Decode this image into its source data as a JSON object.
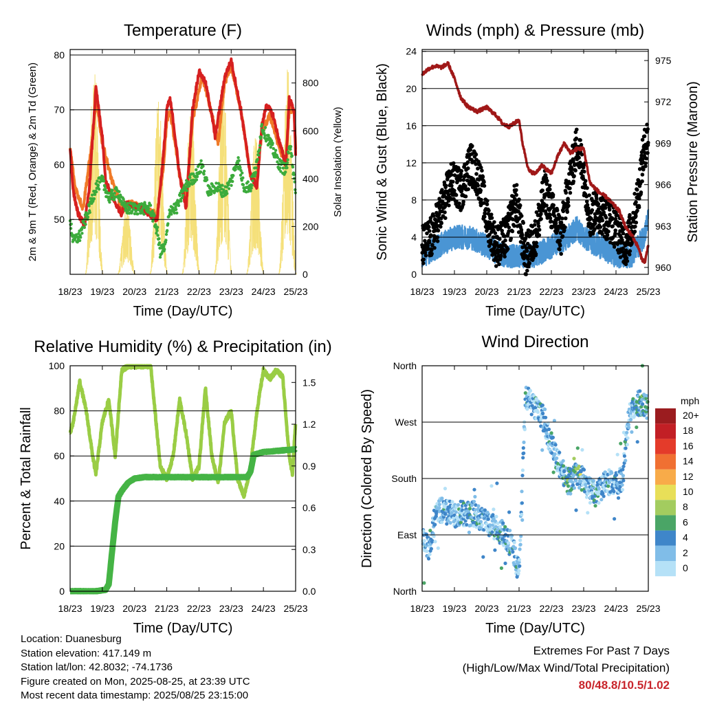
{
  "x_ticks": [
    "18/23",
    "19/23",
    "20/23",
    "21/23",
    "22/23",
    "23/23",
    "24/23",
    "25/23"
  ],
  "colors": {
    "t2": "#d62020",
    "t9": "#f07a28",
    "td": "#3cab3c",
    "sol": "#f5e07a",
    "wind": "#4a95d4",
    "gust": "#000000",
    "pres": "#a01818",
    "rh": "#9acd45",
    "precip": "#45b445"
  },
  "chart_data": [
    {
      "type": "line",
      "title": "Temperature (F)",
      "xlabel": "Time (Day/UTC)",
      "ylabel": "2m & 9m T (Red, Orange) & 2m Td (Green)",
      "y2label": "Solar Insolation (Yellow)",
      "x_ticks": [
        "18/23",
        "19/23",
        "20/23",
        "21/23",
        "22/23",
        "23/23",
        "24/23",
        "25/23"
      ],
      "xlim": [
        0,
        7
      ],
      "ylim": [
        40,
        81
      ],
      "yticks": [
        50,
        60,
        70,
        80
      ],
      "y2lim": [
        0,
        940
      ],
      "y2ticks": [
        0,
        200,
        400,
        600,
        800
      ],
      "grid": "horizontal",
      "series": [
        {
          "name": "2m T",
          "color": "red",
          "x": [
            0,
            0.1,
            0.25,
            0.45,
            0.6,
            0.8,
            1.0,
            1.1,
            1.25,
            1.4,
            1.6,
            1.7,
            1.8,
            2.2,
            2.7,
            2.9,
            3.0,
            3.1,
            3.2,
            3.4,
            3.6,
            3.8,
            4.0,
            4.2,
            4.4,
            4.5,
            4.8,
            5.0,
            5.3,
            5.6,
            5.8,
            5.95,
            6.1,
            6.3,
            6.5,
            6.7,
            6.8,
            6.95,
            7.0
          ],
          "y": [
            63,
            55,
            51,
            49,
            56,
            74,
            65,
            57,
            55,
            53,
            51,
            53,
            53,
            52,
            50,
            62,
            70,
            72,
            68,
            58,
            52,
            70,
            77,
            75,
            69,
            65,
            76,
            79,
            70,
            58,
            56,
            67,
            71,
            69,
            64,
            60,
            72,
            70,
            62
          ]
        },
        {
          "name": "9m T",
          "color": "orange",
          "x": [
            0,
            0.15,
            0.4,
            0.7,
            0.8,
            1.0,
            1.3,
            1.6,
            1.9,
            2.2,
            2.7,
            2.9,
            3.0,
            3.1,
            3.4,
            3.6,
            3.8,
            4.1,
            4.2,
            4.6,
            4.8,
            5.0,
            5.3,
            5.6,
            5.8,
            5.95,
            6.2,
            6.5,
            6.7,
            6.8,
            6.95,
            7.0
          ],
          "y": [
            63,
            56,
            52,
            65,
            72,
            64,
            57,
            52,
            53,
            52,
            51,
            60,
            68,
            70,
            58,
            53,
            68,
            76,
            74,
            64,
            75,
            78,
            70,
            58,
            57,
            66,
            69,
            63,
            60,
            70,
            70,
            63
          ]
        },
        {
          "name": "2m Td",
          "color": "green",
          "x": [
            0,
            0.1,
            0.3,
            0.6,
            0.8,
            1.0,
            1.2,
            1.5,
            1.7,
            2.1,
            2.5,
            2.7,
            2.8,
            2.95,
            3.1,
            3.3,
            3.5,
            3.7,
            3.9,
            4.1,
            4.3,
            4.5,
            4.8,
            5.0,
            5.2,
            5.4,
            5.6,
            5.8,
            5.95,
            6.2,
            6.5,
            6.7,
            6.85,
            7.0
          ],
          "y": [
            50,
            46,
            47,
            52,
            56,
            57,
            54,
            55,
            52,
            52,
            52,
            48,
            44,
            45,
            52,
            52,
            55,
            57,
            58,
            60,
            55,
            56,
            55,
            57,
            61,
            56,
            56,
            60,
            67,
            64,
            60,
            59,
            64,
            54
          ]
        },
        {
          "name": "Solar Insolation",
          "color": "yellow",
          "axis": "y2",
          "peak_days": [
            0.75,
            1.75,
            2.75,
            3.75,
            4.75,
            5.75,
            6.75
          ],
          "peaks": [
            930,
            300,
            760,
            730,
            820,
            600,
            930
          ]
        }
      ]
    },
    {
      "type": "line",
      "title": "Winds (mph) & Pressure (mb)",
      "xlabel": "Time (Day/UTC)",
      "ylabel": "Sonic Wind & Gust (Blue, Black)",
      "y2label": "Station Pressure (Maroon)",
      "x_ticks": [
        "18/23",
        "19/23",
        "20/23",
        "21/23",
        "22/23",
        "23/23",
        "24/23",
        "25/23"
      ],
      "xlim": [
        0,
        7
      ],
      "ylim": [
        0,
        24.2
      ],
      "yticks": [
        0,
        4,
        8,
        12,
        16,
        20,
        24
      ],
      "y2lim": [
        959.5,
        975.8
      ],
      "y2ticks": [
        960,
        963,
        966,
        969,
        972,
        975
      ],
      "grid": "horizontal",
      "series": [
        {
          "name": "Gust",
          "color": "black",
          "x": [
            0,
            0.3,
            0.6,
            0.9,
            1.2,
            1.5,
            1.8,
            2.0,
            2.3,
            2.6,
            2.9,
            3.2,
            3.5,
            3.8,
            4.0,
            4.3,
            4.5,
            4.8,
            5.0,
            5.2,
            5.4,
            5.7,
            6.0,
            6.3,
            6.5,
            6.7,
            6.85,
            7.0
          ],
          "y": [
            3,
            4,
            7,
            10,
            9,
            12,
            10,
            6,
            3,
            4,
            8,
            2,
            4,
            9,
            7,
            4,
            9,
            14,
            11,
            6,
            7,
            6,
            5,
            3,
            5,
            9,
            13,
            15
          ]
        },
        {
          "name": "Wind",
          "color": "blue",
          "x": [
            0,
            0.5,
            1.0,
            1.5,
            2.0,
            2.5,
            3.0,
            3.5,
            4.0,
            4.5,
            4.8,
            5.0,
            5.5,
            6.0,
            6.5,
            6.85,
            7.0
          ],
          "y": [
            2,
            3,
            4,
            4,
            3,
            2,
            2,
            2,
            3,
            4,
            5,
            4,
            3,
            2,
            2,
            4,
            6
          ]
        },
        {
          "name": "Pressure",
          "color": "maroon",
          "axis": "y2",
          "x": [
            0,
            0.2,
            0.4,
            0.6,
            0.8,
            1.0,
            1.2,
            1.4,
            1.7,
            2.0,
            2.3,
            2.5,
            2.7,
            3.0,
            3.1,
            3.3,
            3.5,
            3.7,
            4.0,
            4.2,
            4.4,
            4.6,
            4.8,
            5.0,
            5.2,
            5.5,
            5.7,
            5.9,
            6.1,
            6.3,
            6.5,
            6.7,
            6.8,
            6.9,
            7.0
          ],
          "y": [
            974,
            974.4,
            974.6,
            974.5,
            974.8,
            973.7,
            972.3,
            971.7,
            971.3,
            971.6,
            971,
            970.4,
            970.2,
            970.7,
            969.1,
            967,
            966.8,
            967.4,
            966.8,
            968.1,
            969,
            968.3,
            968.6,
            968.6,
            966.1,
            965.4,
            965.1,
            964.6,
            964.1,
            962.9,
            962.3,
            961.4,
            960.6,
            960.4,
            961.7
          ]
        }
      ]
    },
    {
      "type": "line",
      "title": "Relative Humidity (%) & Precipitation (in)",
      "xlabel": "Time (Day/UTC)",
      "ylabel": "Percent & Total Rainfall",
      "x_ticks": [
        "18/23",
        "19/23",
        "20/23",
        "21/23",
        "22/23",
        "23/23",
        "24/23",
        "25/23"
      ],
      "xlim": [
        0,
        7
      ],
      "ylim": [
        0,
        100
      ],
      "yticks": [
        0,
        20,
        40,
        60,
        80,
        100
      ],
      "y2lim": [
        0,
        1.62
      ],
      "y2ticks": [
        0.0,
        0.3,
        0.6,
        0.9,
        1.2,
        1.5
      ],
      "y2ticklabels": [
        "0.0",
        "0.3",
        "0.6",
        "0.9",
        "1.2",
        "1.5"
      ],
      "grid": "horizontal",
      "series": [
        {
          "name": "Relative Humidity",
          "color": "light green",
          "x": [
            0,
            0.1,
            0.3,
            0.5,
            0.7,
            0.8,
            1.0,
            1.2,
            1.4,
            1.6,
            1.8,
            2.0,
            2.5,
            2.7,
            2.8,
            3.0,
            3.2,
            3.4,
            3.6,
            3.8,
            4.0,
            4.2,
            4.4,
            4.6,
            4.8,
            5.0,
            5.2,
            5.4,
            5.6,
            5.8,
            6.0,
            6.2,
            6.4,
            6.6,
            6.8,
            6.9,
            7.0
          ],
          "y": [
            70,
            75,
            93,
            80,
            60,
            52,
            75,
            85,
            60,
            98,
            100,
            100,
            100,
            70,
            55,
            50,
            60,
            85,
            70,
            50,
            55,
            90,
            60,
            48,
            75,
            80,
            50,
            42,
            55,
            80,
            98,
            94,
            98,
            95,
            60,
            52,
            75
          ]
        },
        {
          "name": "Total Rainfall",
          "color": "green",
          "axis": "y2",
          "x": [
            0,
            0.8,
            1.1,
            1.2,
            1.3,
            1.4,
            1.5,
            1.6,
            1.8,
            2.0,
            2.3,
            3.0,
            4.0,
            5.0,
            5.5,
            5.6,
            5.7,
            6.0,
            6.5,
            7.0
          ],
          "y": [
            0,
            0,
            0.01,
            0.05,
            0.28,
            0.5,
            0.68,
            0.72,
            0.78,
            0.81,
            0.82,
            0.82,
            0.82,
            0.82,
            0.82,
            0.86,
            0.98,
            1.0,
            1.01,
            1.02
          ]
        }
      ]
    },
    {
      "type": "scatter",
      "title": "Wind Direction",
      "xlabel": "Time (Day/UTC)",
      "ylabel": "Direction (Colored By Speed)",
      "x_ticks": [
        "18/23",
        "19/23",
        "20/23",
        "21/23",
        "22/23",
        "23/23",
        "24/23",
        "25/23"
      ],
      "xlim": [
        0,
        7
      ],
      "ylim": [
        0,
        360
      ],
      "ytick_values": [
        0,
        90,
        180,
        270,
        360
      ],
      "yticks": [
        "North",
        "East",
        "South",
        "West",
        "North"
      ],
      "grid": "horizontal",
      "legend_title": "mph",
      "legend_placement": "right",
      "legend": [
        {
          "label": "0",
          "color": "#b5e1f7"
        },
        {
          "label": "2",
          "color": "#80bde8"
        },
        {
          "label": "4",
          "color": "#3f86c9"
        },
        {
          "label": "6",
          "color": "#4aa566"
        },
        {
          "label": "8",
          "color": "#a3cc5f"
        },
        {
          "label": "10",
          "color": "#e8df58"
        },
        {
          "label": "12",
          "color": "#f8ab49"
        },
        {
          "label": "14",
          "color": "#f07032"
        },
        {
          "label": "16",
          "color": "#e43b2a"
        },
        {
          "label": "18",
          "color": "#c21f25"
        },
        {
          "label": "20+",
          "color": "#9b1c1f"
        }
      ],
      "trend": {
        "x": [
          0,
          0.2,
          0.4,
          0.6,
          0.8,
          1.0,
          1.2,
          1.4,
          1.6,
          1.8,
          2.0,
          2.2,
          2.4,
          2.6,
          2.8,
          2.9,
          3.0,
          3.2,
          3.4,
          3.6,
          3.8,
          3.95,
          4.1,
          4.3,
          4.5,
          4.7,
          4.9,
          5.0,
          5.2,
          5.4,
          5.6,
          5.8,
          6.0,
          6.2,
          6.4,
          6.6,
          6.8,
          7.0
        ],
        "y": [
          85,
          65,
          120,
          130,
          125,
          122,
          125,
          125,
          124,
          120,
          110,
          105,
          97,
          88,
          70,
          50,
          30,
          310,
          300,
          290,
          270,
          240,
          220,
          195,
          175,
          183,
          185,
          175,
          160,
          155,
          170,
          175,
          175,
          180,
          280,
          300,
          300,
          290
        ]
      }
    }
  ],
  "info": {
    "location": "Location: Duanesburg",
    "elevation": "Station elevation: 417.149 m",
    "latlon": "Station lat/lon: 42.8032; -74.1736",
    "created": "Figure created on Mon, 2025-08-25, at 23:39 UTC",
    "recent": "Most recent data timestamp: 2025/08/25 23:15:00"
  },
  "extremes": {
    "title": "Extremes For Past 7 Days",
    "subtitle": "(High/Low/Max Wind/Total Precipitation)",
    "values": "80/48.8/10.5/1.02"
  }
}
